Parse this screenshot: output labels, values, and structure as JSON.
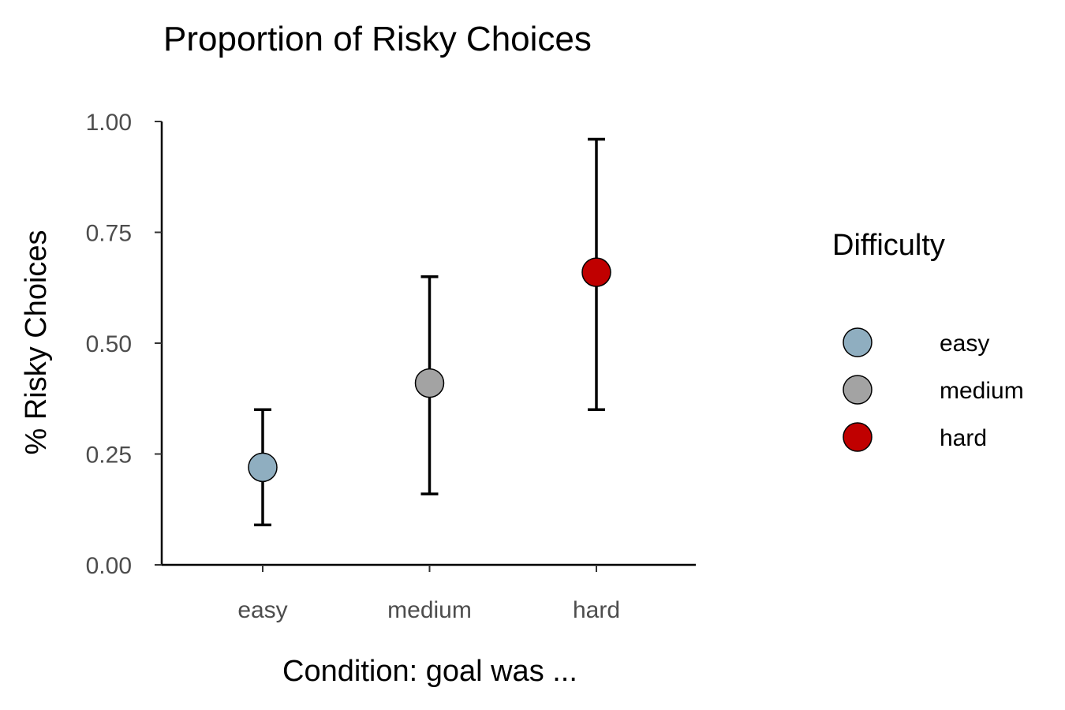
{
  "chart_data": {
    "type": "scatter",
    "title": "Proportion of Risky Choices",
    "xlabel": "Condition: goal was ...",
    "ylabel": "% Risky Choices",
    "categories": [
      "easy",
      "medium",
      "hard"
    ],
    "ylim": [
      0,
      1
    ],
    "yticks": [
      "0.00",
      "0.25",
      "0.50",
      "0.75",
      "1.00"
    ],
    "ytick_values": [
      0,
      0.25,
      0.5,
      0.75,
      1.0
    ],
    "grid": false,
    "legend": {
      "title": "Difficulty",
      "placement": "right",
      "entries": [
        "easy",
        "medium",
        "hard"
      ]
    },
    "points": [
      {
        "category": "easy",
        "value": 0.22,
        "lower": 0.09,
        "upper": 0.35,
        "color": "#8faec0"
      },
      {
        "category": "medium",
        "value": 0.41,
        "lower": 0.16,
        "upper": 0.65,
        "color": "#a3a3a3"
      },
      {
        "category": "hard",
        "value": 0.66,
        "lower": 0.35,
        "upper": 0.96,
        "color": "#c00000"
      }
    ]
  }
}
